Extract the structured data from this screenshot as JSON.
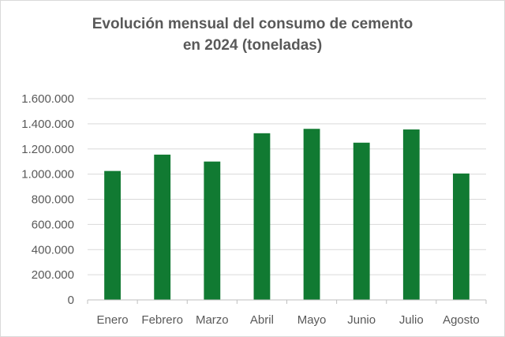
{
  "chart_data": {
    "type": "bar",
    "title_lines": [
      "Evolución mensual del consumo de cemento",
      "en 2024 (toneladas)"
    ],
    "categories": [
      "Enero",
      "Febrero",
      "Marzo",
      "Abril",
      "Mayo",
      "Junio",
      "Julio",
      "Agosto"
    ],
    "values": [
      1025000,
      1155000,
      1100000,
      1325000,
      1360000,
      1250000,
      1355000,
      1005000
    ],
    "y_ticks": [
      "0",
      "200.000",
      "400.000",
      "600.000",
      "800.000",
      "1.000.000",
      "1.200.000",
      "1.400.000",
      "1.600.000"
    ],
    "ylim": [
      0,
      1600000
    ],
    "grid": true,
    "legend": "none",
    "bar_color": "#117a32",
    "grid_color": "#d9d9d9",
    "axis_color": "#bfbfbf"
  }
}
